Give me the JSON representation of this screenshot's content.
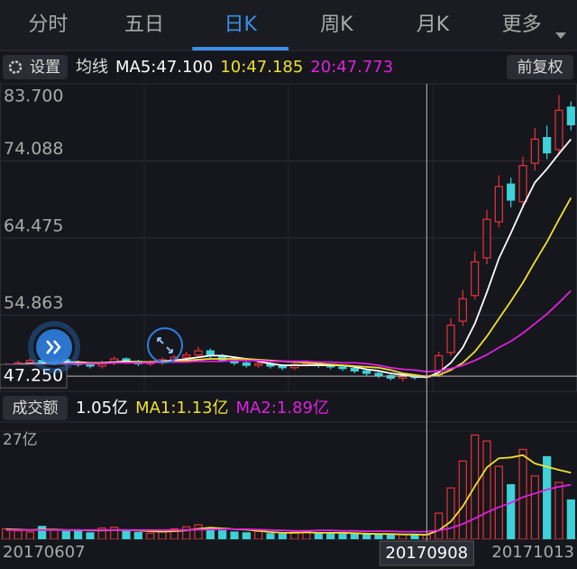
{
  "tabs": [
    "分时",
    "五日",
    "日K",
    "周K",
    "月K",
    "更多"
  ],
  "active_tab": 2,
  "settings_button": "设置",
  "ma_label": "均线",
  "adjust_button": "前复权",
  "volume_button": "成交额",
  "chart_data": {
    "type": "candlestick",
    "categories": [
      "20170607",
      null,
      null,
      null,
      null,
      null,
      null,
      null,
      null,
      null,
      null,
      null,
      null,
      null,
      null,
      null,
      null,
      null,
      null,
      null,
      null,
      null,
      null,
      null,
      null,
      null,
      null,
      null,
      null,
      null,
      null,
      null,
      null,
      null,
      null,
      "20170908",
      null,
      null,
      null,
      null,
      null,
      null,
      null,
      null,
      null,
      null,
      null,
      "20171013"
    ],
    "open": [
      48.3,
      48.6,
      48.9,
      49.2,
      48.8,
      49.3,
      49.0,
      48.7,
      48.5,
      48.9,
      49.4,
      49.1,
      48.8,
      48.9,
      49.3,
      49.6,
      49.9,
      50.4,
      49.8,
      49.2,
      48.9,
      48.6,
      48.8,
      48.5,
      48.3,
      48.7,
      48.9,
      48.6,
      48.4,
      48.2,
      47.9,
      47.6,
      47.3,
      47.0,
      47.2,
      47.1,
      47.4,
      50.2,
      54.1,
      57.3,
      62.0,
      66.5,
      71.2,
      69.0,
      73.8,
      77.0,
      75.5,
      80.8
    ],
    "high": [
      48.9,
      49.2,
      49.5,
      49.5,
      49.6,
      49.5,
      49.2,
      48.9,
      49.2,
      49.7,
      49.6,
      49.3,
      49.2,
      49.6,
      49.9,
      50.3,
      50.9,
      50.7,
      50.0,
      49.4,
      49.1,
      49.1,
      49.0,
      48.7,
      49.0,
      49.2,
      49.1,
      48.8,
      48.6,
      48.4,
      48.1,
      47.8,
      47.5,
      47.5,
      47.4,
      47.6,
      50.3,
      54.5,
      58.0,
      62.8,
      68.0,
      72.3,
      72.0,
      74.6,
      78.2,
      78.5,
      82.3,
      81.5
    ],
    "low": [
      48.0,
      48.3,
      48.6,
      48.5,
      48.5,
      48.8,
      48.4,
      48.2,
      48.2,
      48.6,
      48.8,
      48.5,
      48.5,
      48.6,
      49.0,
      49.3,
      49.6,
      49.5,
      49.0,
      48.6,
      48.3,
      48.3,
      48.2,
      48.0,
      48.0,
      48.4,
      48.3,
      48.1,
      47.9,
      47.6,
      47.3,
      47.0,
      46.7,
      46.6,
      46.8,
      46.9,
      47.1,
      49.8,
      53.5,
      56.8,
      61.2,
      65.8,
      68.3,
      68.2,
      72.9,
      74.3,
      75.0,
      77.9
    ],
    "close": [
      48.6,
      48.9,
      49.2,
      48.8,
      49.3,
      49.0,
      48.7,
      48.5,
      48.9,
      49.4,
      49.1,
      48.8,
      48.9,
      49.3,
      49.6,
      49.9,
      50.4,
      49.8,
      49.2,
      48.9,
      48.6,
      48.8,
      48.5,
      48.3,
      48.7,
      48.9,
      48.6,
      48.4,
      48.2,
      47.9,
      47.6,
      47.3,
      47.0,
      47.2,
      47.1,
      47.3,
      49.8,
      53.6,
      56.9,
      61.5,
      66.8,
      70.9,
      69.2,
      73.5,
      76.8,
      75.1,
      80.4,
      78.6
    ],
    "up_color": "#e8323c",
    "down_color": "#3fd0d8",
    "series": [
      {
        "name": "MA5:47.100",
        "color": "#ffffff",
        "values": [
          48.6,
          48.7,
          48.8,
          48.8,
          49.0,
          49.0,
          49.0,
          48.9,
          48.9,
          49.0,
          49.1,
          49.0,
          49.0,
          49.1,
          49.2,
          49.4,
          49.6,
          49.8,
          49.8,
          49.6,
          49.4,
          49.1,
          48.8,
          48.6,
          48.6,
          48.6,
          48.6,
          48.6,
          48.6,
          48.4,
          48.1,
          47.9,
          47.6,
          47.4,
          47.2,
          47.1,
          47.7,
          48.9,
          50.8,
          53.8,
          57.7,
          61.9,
          65.1,
          68.4,
          71.4,
          73.1,
          75.0,
          76.8
        ]
      },
      {
        "name": "10:47.185",
        "color": "#f0e030",
        "values": [
          48.6,
          48.6,
          48.7,
          48.7,
          48.8,
          48.8,
          48.9,
          48.9,
          48.9,
          48.9,
          49.0,
          49.0,
          49.0,
          49.0,
          49.1,
          49.2,
          49.3,
          49.4,
          49.4,
          49.4,
          49.4,
          49.3,
          49.2,
          49.1,
          49.0,
          48.9,
          48.8,
          48.7,
          48.6,
          48.5,
          48.4,
          48.3,
          48.0,
          47.6,
          47.4,
          47.2,
          47.4,
          48.0,
          48.9,
          50.3,
          52.2,
          54.4,
          56.6,
          58.9,
          61.5,
          64.0,
          66.8,
          69.5
        ]
      },
      {
        "name": "20:47.773",
        "color": "#e020e0",
        "values": [
          48.7,
          48.7,
          48.7,
          48.7,
          48.7,
          48.8,
          48.8,
          48.8,
          48.8,
          48.9,
          48.9,
          48.9,
          48.9,
          49.0,
          49.0,
          49.0,
          49.1,
          49.1,
          49.1,
          49.2,
          49.2,
          49.2,
          49.1,
          49.1,
          49.1,
          49.1,
          49.0,
          49.0,
          48.9,
          48.9,
          48.8,
          48.6,
          48.3,
          48.1,
          48.0,
          47.8,
          47.9,
          48.2,
          48.6,
          49.2,
          49.9,
          50.8,
          51.6,
          52.6,
          53.8,
          55.0,
          56.4,
          57.9
        ]
      }
    ],
    "ylim": [
      45.35,
      83.7
    ],
    "yticks": [
      {
        "value": 83.7,
        "label": "83.700"
      },
      {
        "value": 74.088,
        "label": "74.088"
      },
      {
        "value": 64.475,
        "label": "64.475"
      },
      {
        "value": 54.863,
        "label": "54.863"
      }
    ],
    "crosshair": {
      "value": 47.25,
      "label": "47.250"
    },
    "volume": {
      "label": "1.05亿",
      "values": [
        2.6,
        2.1,
        1.8,
        3.2,
        2.4,
        1.9,
        2.2,
        1.6,
        2.8,
        3.0,
        2.0,
        1.7,
        1.5,
        2.3,
        2.6,
        3.1,
        3.6,
        2.9,
        2.1,
        1.8,
        1.6,
        2.0,
        1.4,
        1.3,
        1.9,
        1.7,
        1.5,
        1.6,
        1.3,
        1.2,
        1.4,
        1.1,
        1.3,
        1.2,
        1.1,
        1.05,
        6.5,
        12.8,
        19.5,
        26.0,
        24.5,
        18.2,
        13.6,
        22.4,
        15.8,
        20.6,
        14.2,
        9.8
      ]
    },
    "volume_series": [
      {
        "name": "MA1:1.13亿",
        "color": "#f0e030",
        "values": [
          2.5,
          2.4,
          2.3,
          2.4,
          2.4,
          2.3,
          2.3,
          2.2,
          2.2,
          2.3,
          2.3,
          2.2,
          2.0,
          1.9,
          2.0,
          2.2,
          2.6,
          2.9,
          2.7,
          2.5,
          2.4,
          2.1,
          1.8,
          1.6,
          1.6,
          1.7,
          1.6,
          1.6,
          1.6,
          1.5,
          1.4,
          1.3,
          1.3,
          1.2,
          1.2,
          1.13,
          2.2,
          4.4,
          8.2,
          13.2,
          17.9,
          20.2,
          20.4,
          21.0,
          18.9,
          18.1,
          17.3,
          16.6
        ]
      },
      {
        "name": "MA2:1.89亿",
        "color": "#e020e0",
        "values": [
          2.3,
          2.3,
          2.3,
          2.3,
          2.3,
          2.3,
          2.3,
          2.3,
          2.3,
          2.3,
          2.3,
          2.3,
          2.3,
          2.3,
          2.3,
          2.3,
          2.4,
          2.4,
          2.5,
          2.5,
          2.5,
          2.4,
          2.3,
          2.2,
          2.1,
          2.1,
          2.2,
          2.2,
          2.1,
          2.1,
          2.0,
          2.0,
          2.0,
          1.9,
          1.9,
          1.89,
          2.2,
          2.8,
          3.8,
          5.2,
          6.7,
          8.0,
          9.1,
          10.5,
          11.4,
          12.4,
          13.1,
          13.6
        ]
      }
    ],
    "volume_ylim": [
      0,
      27
    ],
    "volume_yticks": [
      {
        "value": 27,
        "label": "27亿"
      }
    ]
  }
}
